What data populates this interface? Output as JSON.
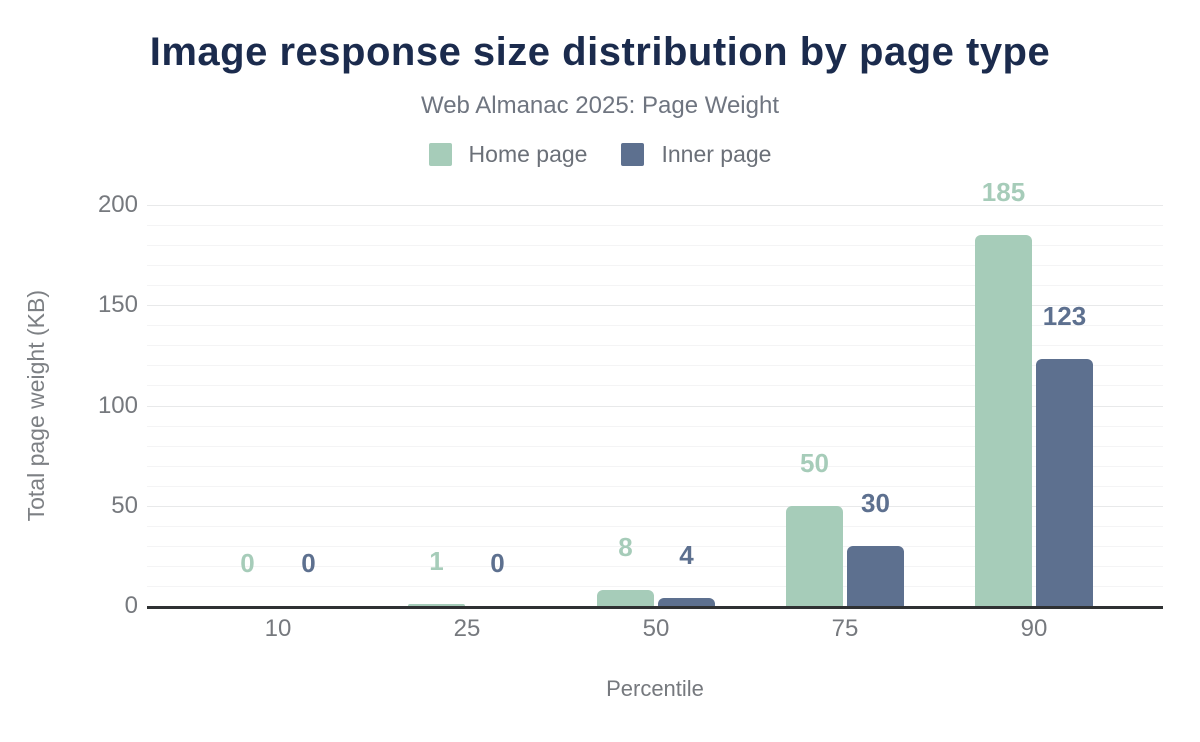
{
  "chart_data": {
    "type": "bar",
    "title": "Image response size distribution by page type",
    "subtitle": "Web Almanac 2025: Page Weight",
    "categories": [
      "10",
      "25",
      "50",
      "75",
      "90"
    ],
    "series": [
      {
        "name": "Home page",
        "color": "#a6ccb9",
        "values": [
          0,
          1,
          8,
          50,
          185
        ]
      },
      {
        "name": "Inner page",
        "color": "#5d708f",
        "values": [
          0,
          0,
          4,
          30,
          123
        ]
      }
    ],
    "xlabel": "Percentile",
    "ylabel": "Total page weight (KB)",
    "ylim": [
      0,
      200
    ],
    "yticks": [
      0,
      50,
      100,
      150,
      200
    ],
    "minor_grid_step": 10,
    "grid": true,
    "legend_position": "top",
    "data_labels": true
  },
  "colors": {
    "title_text": "#1b2b4d",
    "subtitle_text": "#6f7580",
    "axis_text": "#76797e",
    "axis_line": "#2f3133",
    "gridline_major": "#e8e9ea",
    "gridline_minor": "#f4f4f5",
    "home_page": "#a6ccb9",
    "inner_page": "#5d708f"
  }
}
